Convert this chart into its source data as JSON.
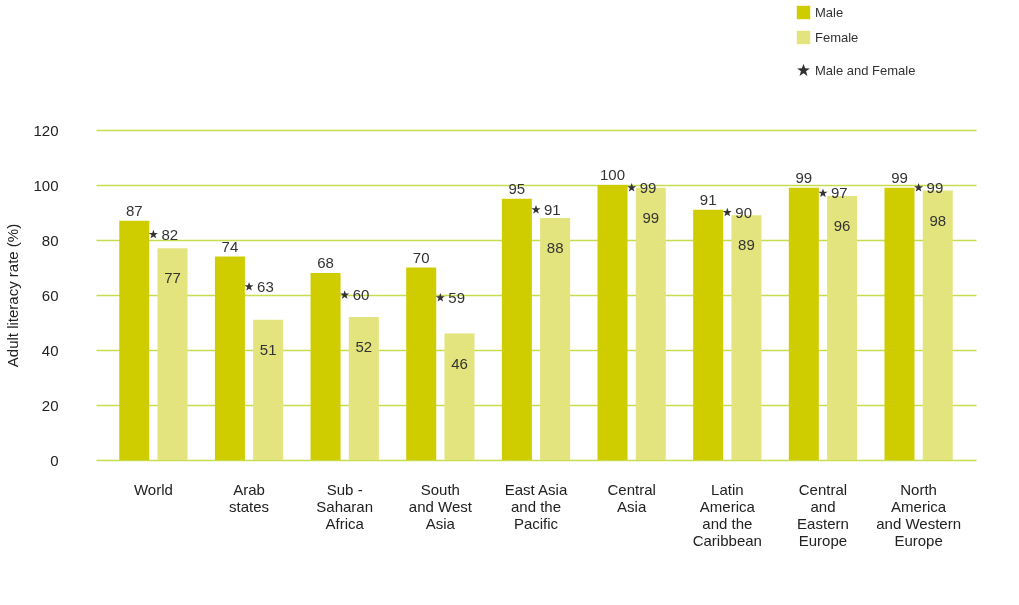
{
  "chart_data": {
    "type": "bar",
    "ylabel": "Adult literacy rate (%)",
    "categories": [
      "World",
      "Arab\nstates",
      "Sub -\nSaharan\nAfrica",
      "South\nand West\nAsia",
      "East Asia\nand the\nPacific",
      "Central\nAsia",
      "Latin\nAmerica\nand the\nCaribbean",
      "Central\nand\nEastern\nEurope",
      "North\nAmerica\nand Western\nEurope"
    ],
    "series": [
      {
        "name": "Male",
        "color": "#cfcd00",
        "values": [
          87,
          74,
          68,
          70,
          95,
          100,
          91,
          99,
          99
        ]
      },
      {
        "name": "Female",
        "color": "#e4e47e",
        "values": [
          77,
          51,
          52,
          46,
          88,
          99,
          89,
          96,
          98
        ]
      },
      {
        "name": "Male and Female",
        "type": "scatter",
        "marker": "star",
        "color": "#333333",
        "values": [
          82,
          63,
          60,
          59,
          91,
          99,
          90,
          97,
          99
        ]
      }
    ],
    "ylim": [
      0,
      120
    ],
    "yticks": [
      0,
      20,
      40,
      60,
      80,
      100,
      120
    ],
    "grid": "y",
    "legend": "top right",
    "data_labels": true
  }
}
